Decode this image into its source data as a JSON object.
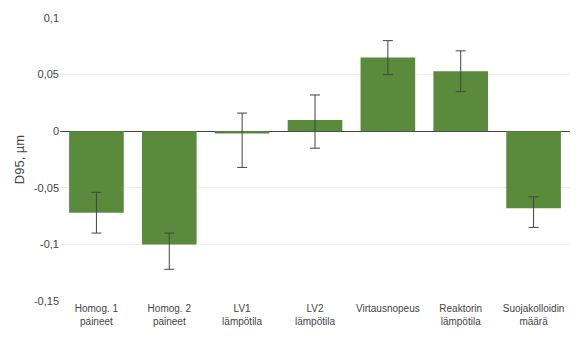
{
  "chart_data": {
    "type": "bar",
    "categories": [
      "Homog. 1\npaineet",
      "Homog. 2\npaineet",
      "LV1\nlämpötila",
      "LV2\nlämpötila",
      "Virtausnopeus",
      "Reaktorin\nlämpötila",
      "Suojakolloidin\nmäärä"
    ],
    "values": [
      -0.072,
      -0.1,
      -0.002,
      0.01,
      0.065,
      0.053,
      -0.068
    ],
    "errors_neg": [
      0.018,
      0.022,
      0.03,
      0.025,
      0.015,
      0.018,
      0.017
    ],
    "errors_pos": [
      0.018,
      0.01,
      0.018,
      0.022,
      0.015,
      0.018,
      0.01
    ],
    "color": "#5a8a3c",
    "ylabel": "D95, µm",
    "ylim": [
      -0.15,
      0.1
    ],
    "yticks": [
      {
        "value": -0.15,
        "label": "-0,15"
      },
      {
        "value": -0.1,
        "label": "-0,1"
      },
      {
        "value": -0.05,
        "label": "-0,05"
      },
      0,
      {
        "value": 0.05,
        "label": "0,05"
      },
      {
        "value": 0.1,
        "label": "0,1"
      }
    ],
    "grid": true
  }
}
